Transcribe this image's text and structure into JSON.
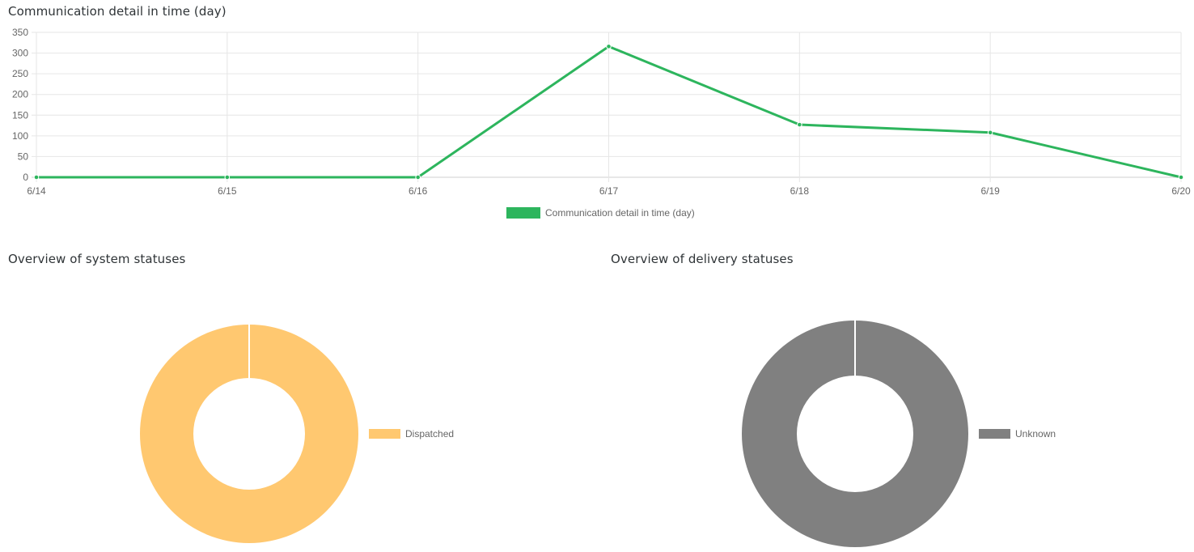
{
  "colors": {
    "line": "#2db55d",
    "dispatched": "#ffc870",
    "unknown": "#808080",
    "grid": "#e6e6e6",
    "tick_text": "#666666"
  },
  "chart_data": [
    {
      "type": "line",
      "title": "Communication detail in time (day)",
      "x": [
        "6/14",
        "6/15",
        "6/16",
        "6/17",
        "6/18",
        "6/19",
        "6/20"
      ],
      "series": [
        {
          "name": "Communication detail in time (day)",
          "values": [
            0,
            0,
            0,
            316,
            127,
            108,
            0
          ]
        }
      ],
      "ylim": [
        0,
        350
      ],
      "yticks": [
        0,
        50,
        100,
        150,
        200,
        250,
        300,
        350
      ],
      "grid": true,
      "legend": "bottom"
    },
    {
      "type": "pie",
      "title": "Overview of system statuses",
      "labels": [
        "Dispatched"
      ],
      "values": [
        1
      ],
      "legend": "right"
    },
    {
      "type": "pie",
      "title": "Overview of delivery statuses",
      "labels": [
        "Unknown"
      ],
      "values": [
        1
      ],
      "legend": "right"
    }
  ]
}
